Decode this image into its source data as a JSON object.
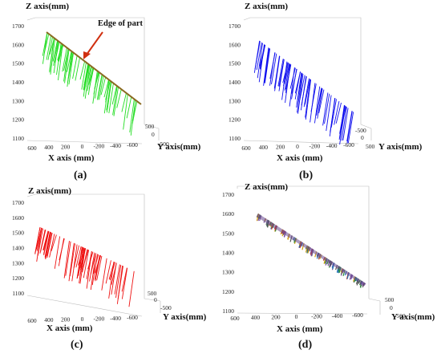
{
  "chart_data": [
    {
      "type": "scatter",
      "panel_caption": "(a)",
      "color": "#22dd22",
      "annotation": "Edge of part",
      "zlabel": "Z axis(mm)",
      "xlabel": "X axis (mm)",
      "ylabel": "Y axis(mm)",
      "z_ticks": [
        1700,
        1600,
        1500,
        1400,
        1300,
        1200,
        1100
      ],
      "x_ticks": [
        600,
        400,
        200,
        0,
        -200,
        -400,
        -600
      ],
      "y_ticks": [
        -500,
        0,
        500
      ],
      "zlim": [
        1100,
        1700
      ],
      "xlim": [
        600,
        -600
      ],
      "ylim": [
        -500,
        500
      ]
    },
    {
      "type": "scatter",
      "panel_caption": "(b)",
      "color": "#1010ee",
      "zlabel": "Z axis(mm)",
      "xlabel": "X axis (mm)",
      "ylabel": "Y axis(mm)",
      "z_ticks": [
        1700,
        1600,
        1500,
        1400,
        1300,
        1200,
        1100
      ],
      "x_ticks": [
        600,
        400,
        200,
        0,
        -200,
        -400,
        -600
      ],
      "y_ticks": [
        -500,
        0,
        500
      ],
      "zlim": [
        1100,
        1700
      ],
      "xlim": [
        600,
        -600
      ],
      "ylim": [
        -500,
        500
      ]
    },
    {
      "type": "scatter",
      "panel_caption": "(c)",
      "color": "#ee1111",
      "zlabel": "Z axis(mm)",
      "xlabel": "X axis (mm)",
      "ylabel": "Y axis(mm)",
      "z_ticks": [
        1700,
        1600,
        1500,
        1400,
        1300,
        1200,
        1100
      ],
      "x_ticks": [
        600,
        400,
        200,
        0,
        -200,
        -400,
        -600
      ],
      "y_ticks": [
        -500,
        0,
        500
      ],
      "zlim": [
        1100,
        1700
      ],
      "xlim": [
        600,
        -600
      ],
      "ylim": [
        -500,
        500
      ]
    },
    {
      "type": "scatter",
      "panel_caption": "(d)",
      "color": "#7a4fa0",
      "zlabel": "Z axis(mm)",
      "xlabel": "X axis (mm)",
      "ylabel": "Y axis(mm)",
      "z_ticks": [
        1700,
        1600,
        1500,
        1400,
        1300,
        1200,
        1100
      ],
      "x_ticks": [
        600,
        400,
        200,
        0,
        -200,
        -400,
        -600
      ],
      "y_ticks": [
        500,
        0,
        -500
      ],
      "zlim": [
        1100,
        1700
      ],
      "xlim": [
        600,
        -600
      ],
      "ylim": [
        -500,
        500
      ]
    }
  ]
}
